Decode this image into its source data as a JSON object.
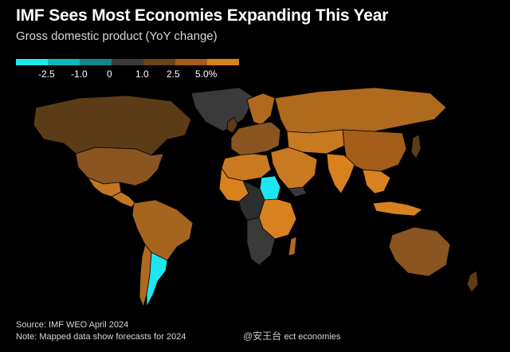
{
  "title": "IMF Sees Most Economies Expanding This Year",
  "subtitle": "Gross domestic product (YoY change)",
  "legend": {
    "colors": [
      "#1ee6f0",
      "#0fb7be",
      "#11858a",
      "#3a3a3a",
      "#6a4418",
      "#a55d1a",
      "#d8821f"
    ],
    "ticks": [
      "-2.5",
      "-1.0",
      "0",
      "1.0",
      "2.5",
      "5.0%"
    ]
  },
  "source": "Source: IMF WEO April 2024",
  "note": "Note: Mapped data show forecasts for 2024 ",
  "note_tail": "ect economies",
  "watermark": "@安王台",
  "map": {
    "region_colors": {
      "north_america": "#5c3b17",
      "usa": "#8a5520",
      "mexico": "#c07622",
      "central_america": "#c07622",
      "greenland": "#3a3a3a",
      "south_america_north": "#a5651f",
      "argentina": "#1ee6f0",
      "chile": "#b06a1e",
      "europe": "#8a5520",
      "uk": "#5c3b17",
      "scandinavia": "#b06a1e",
      "russia": "#b06a1e",
      "central_asia": "#c97a20",
      "middle_east": "#c97a20",
      "yemen": "#3a3a3a",
      "sudan": "#1ee6f0",
      "north_africa": "#c97a20",
      "west_africa": "#d8821f",
      "central_africa": "#2e2e2e",
      "east_africa": "#d8821f",
      "southern_africa": "#3a3a3a",
      "madagascar": "#b06a1e",
      "india": "#d8821f",
      "china": "#a55d1a",
      "japan": "#5c3b17",
      "southeast_asia": "#d8821f",
      "indonesia": "#d8821f",
      "australia": "#8a5520",
      "new_zealand": "#5c3b17"
    }
  }
}
